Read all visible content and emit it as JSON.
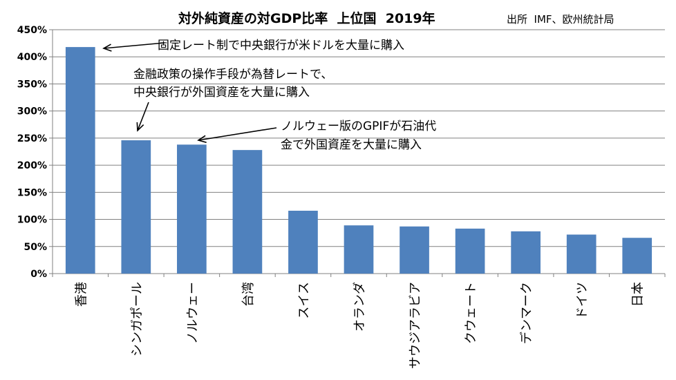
{
  "chart_data": {
    "type": "bar",
    "title": "対外純資産の対GDP比率  上位国  2019年",
    "source": "出所  IMF、欧州統計局",
    "categories": [
      "香港",
      "シンガポール",
      "ノルウェー",
      "台湾",
      "スイス",
      "オランダ",
      "サウジアラビア",
      "クウェート",
      "デンマーク",
      "ドイツ",
      "日本"
    ],
    "values": [
      418,
      246,
      238,
      228,
      116,
      89,
      87,
      83,
      78,
      72,
      66
    ],
    "ylim": [
      0,
      450
    ],
    "yticks": [
      0,
      50,
      100,
      150,
      200,
      250,
      300,
      350,
      400,
      450
    ],
    "ytick_labels": [
      "0%",
      "50%",
      "100%",
      "150%",
      "200%",
      "250%",
      "300%",
      "350%",
      "400%",
      "450%"
    ],
    "grid": true,
    "bar_color": "#4f81bd",
    "annotations": [
      {
        "target": "香港",
        "lines": [
          "固定レート制で中央銀行が米ドルを大量に購入"
        ]
      },
      {
        "target": "シンガポール",
        "lines": [
          "金融政策の操作手段が為替レートで、",
          "中央銀行が外国資産を大量に購入"
        ]
      },
      {
        "target": "ノルウェー",
        "lines": [
          "ノルウェー版のGPIFが石油代",
          "金で外国資産を大量に購入"
        ]
      }
    ]
  }
}
